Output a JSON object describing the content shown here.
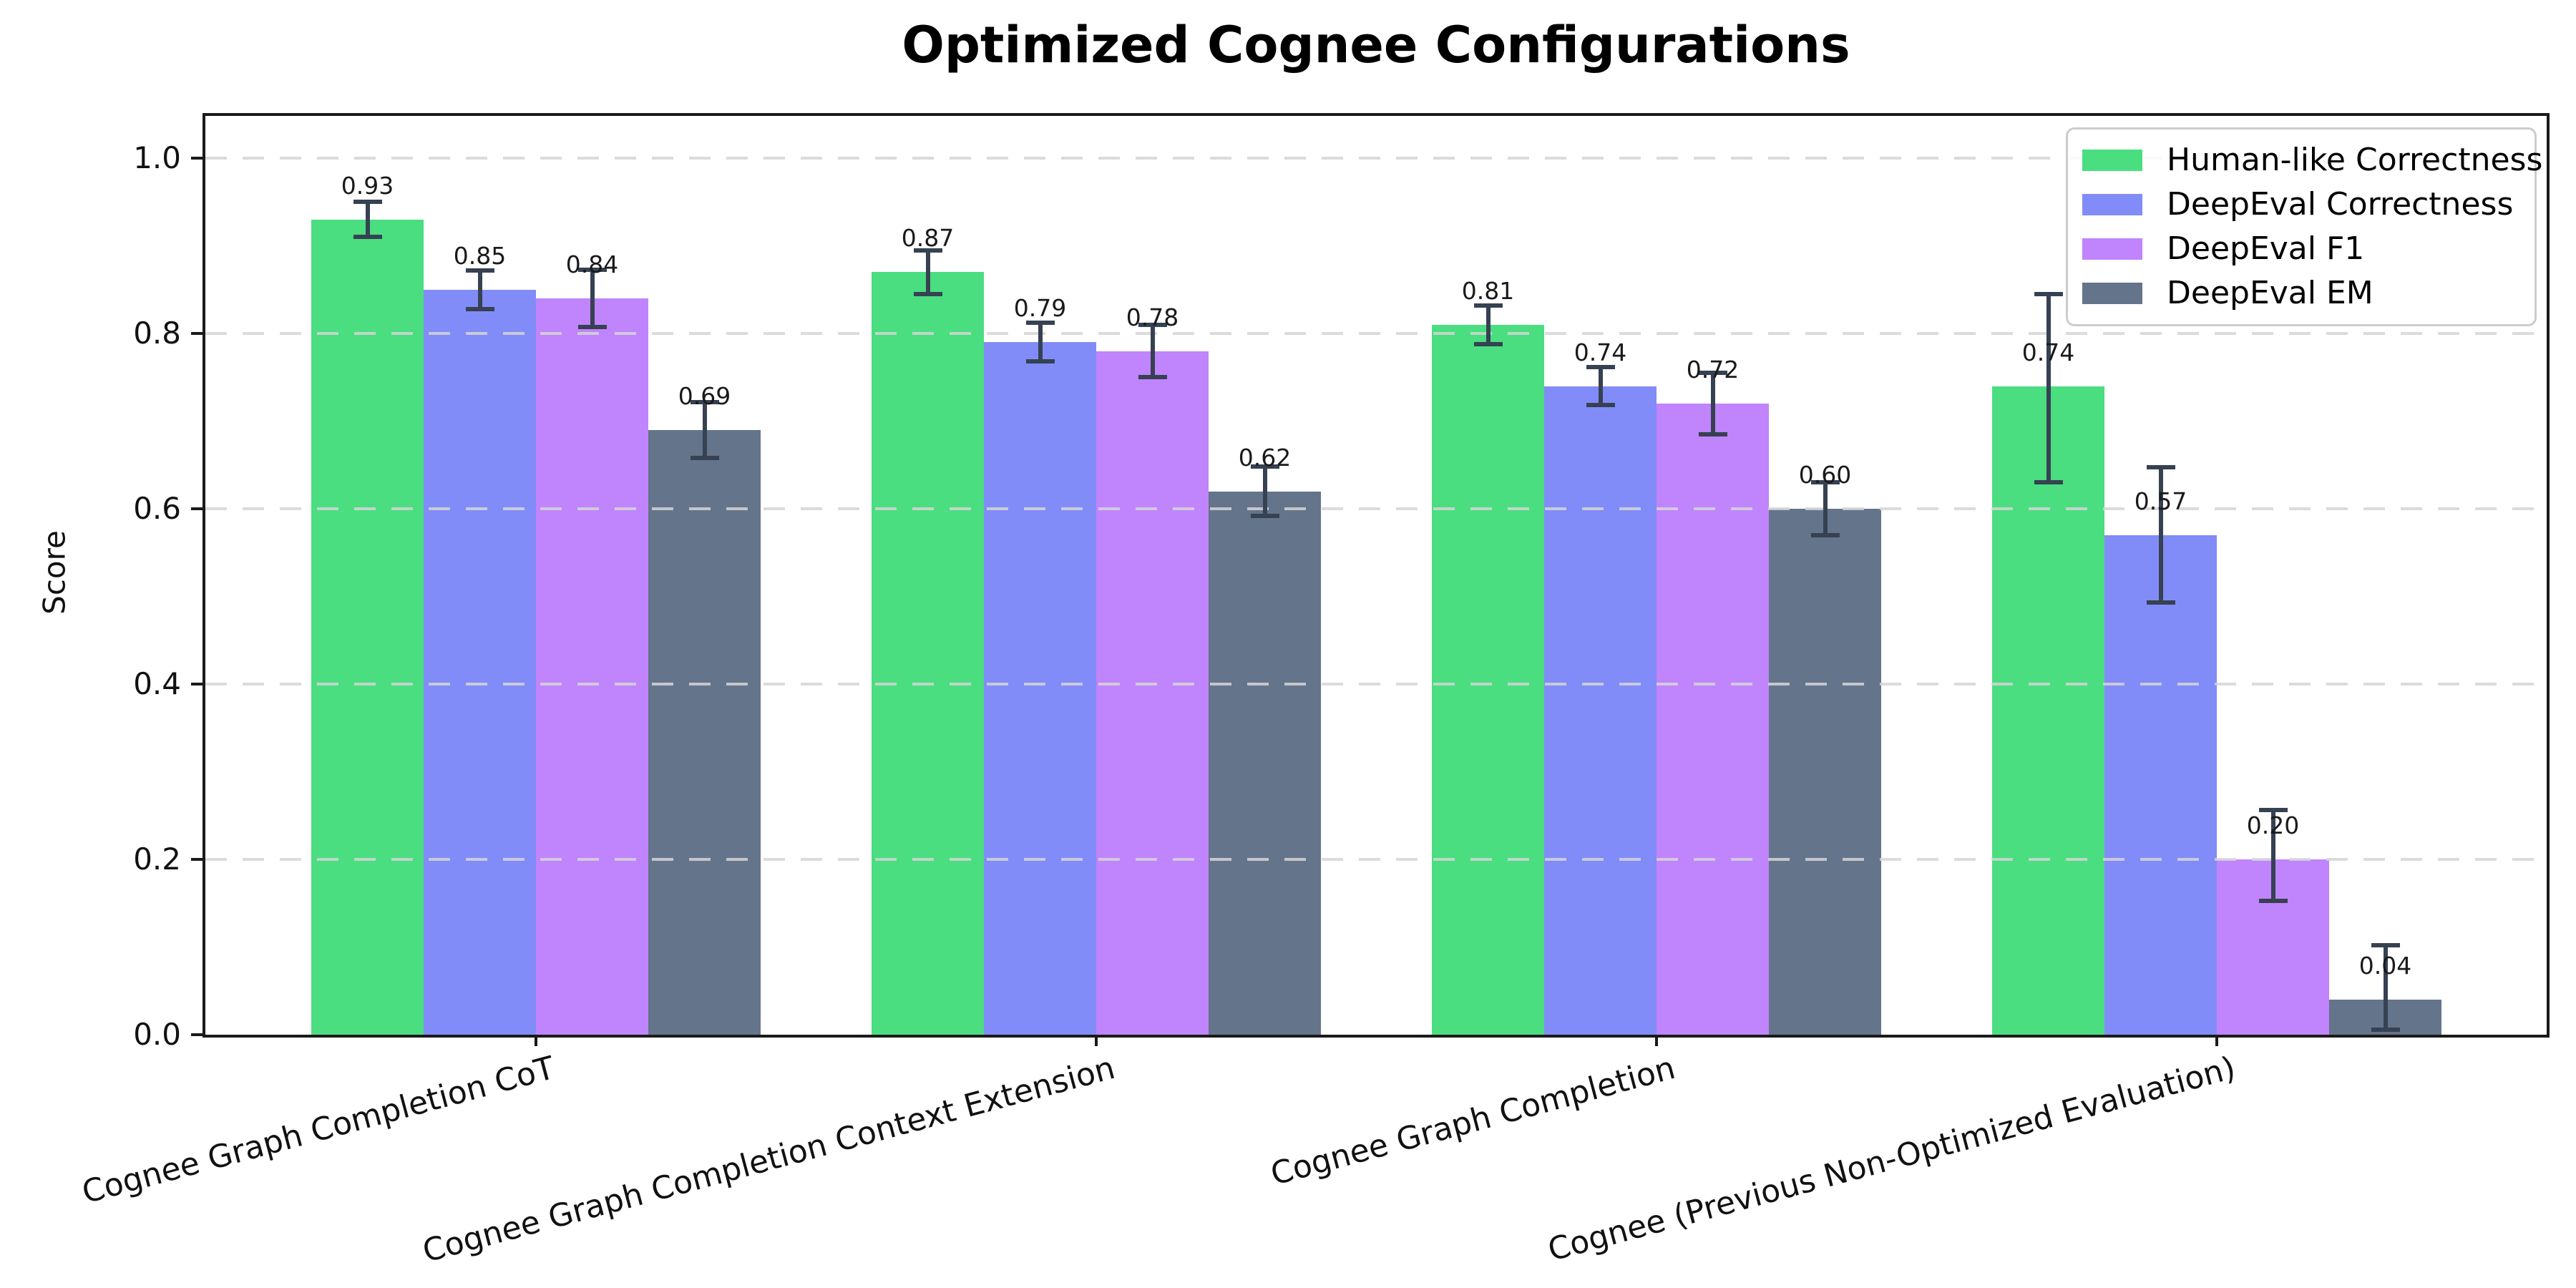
{
  "chart_data": {
    "type": "bar",
    "title": "Optimized Cognee Configurations",
    "xlabel": "",
    "ylabel": "Score",
    "ylim": [
      0,
      1.05
    ],
    "yticks": [
      0.0,
      0.2,
      0.4,
      0.6,
      0.8,
      1.0
    ],
    "grid": {
      "axis": "y",
      "style": "dashed",
      "color": "#d5d5d5",
      "drawn_above_bars": true
    },
    "legend": {
      "position": "upper right"
    },
    "axis_color": "#1a1a1a",
    "error_bar_color": "#364152",
    "background_color": "#ffffff",
    "categories": [
      "Cognee Graph Completion CoT",
      "Cognee Graph Completion Context Extension",
      "Cognee Graph Completion",
      "Cognee (Previous Non-Optimized Evaluation)"
    ],
    "series": [
      {
        "name": "Human-like Correctness",
        "color": "#4ade80",
        "values": [
          0.93,
          0.87,
          0.81,
          0.74
        ],
        "labels": [
          "0.93",
          "0.87",
          "0.81",
          "0.74"
        ],
        "err_minus": [
          0.02,
          0.025,
          0.022,
          0.11
        ],
        "err_plus": [
          0.02,
          0.025,
          0.022,
          0.105
        ]
      },
      {
        "name": "DeepEval Correctness",
        "color": "#818cf8",
        "values": [
          0.85,
          0.79,
          0.74,
          0.57
        ],
        "labels": [
          "0.85",
          "0.79",
          "0.74",
          "0.57"
        ],
        "err_minus": [
          0.022,
          0.022,
          0.022,
          0.077
        ],
        "err_plus": [
          0.022,
          0.022,
          0.022,
          0.077
        ]
      },
      {
        "name": "DeepEval F1",
        "color": "#c084fc",
        "values": [
          0.84,
          0.78,
          0.72,
          0.2
        ],
        "labels": [
          "0.84",
          "0.78",
          "0.72",
          "0.20"
        ],
        "err_minus": [
          0.033,
          0.03,
          0.035,
          0.047
        ],
        "err_plus": [
          0.033,
          0.03,
          0.035,
          0.056
        ]
      },
      {
        "name": "DeepEval EM",
        "color": "#64748b",
        "values": [
          0.69,
          0.62,
          0.6,
          0.04
        ],
        "labels": [
          "0.69",
          "0.62",
          "0.60",
          "0.04"
        ],
        "err_minus": [
          0.032,
          0.028,
          0.03,
          0.034
        ],
        "err_plus": [
          0.032,
          0.028,
          0.03,
          0.062
        ]
      }
    ]
  }
}
